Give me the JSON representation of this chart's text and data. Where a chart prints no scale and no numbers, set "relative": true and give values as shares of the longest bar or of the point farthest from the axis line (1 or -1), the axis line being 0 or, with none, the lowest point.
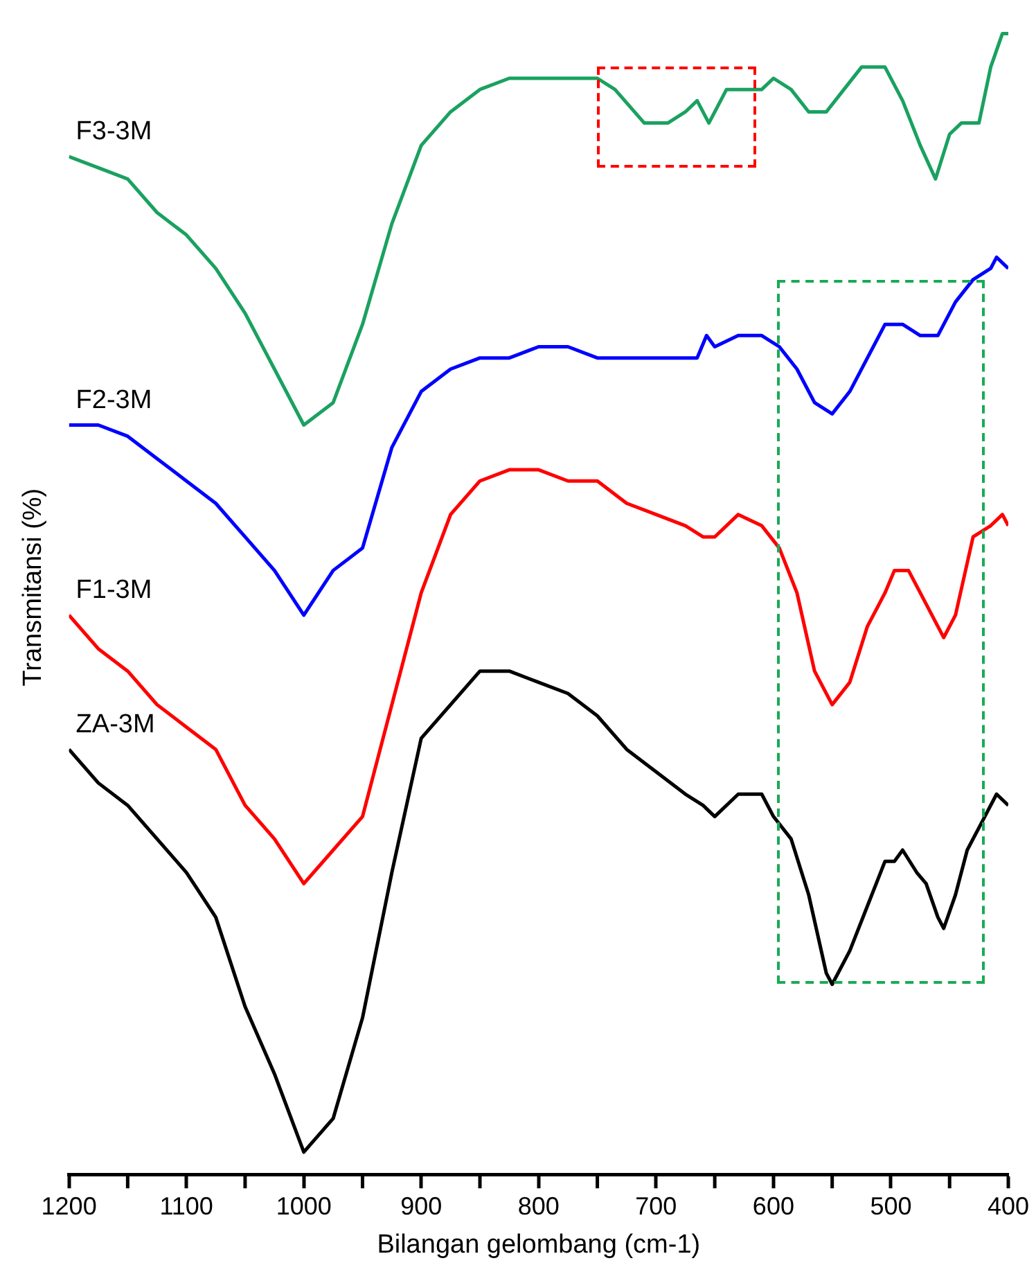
{
  "chart_data": {
    "type": "line",
    "relative": true,
    "xlabel": "Bilangan gelombang (cm-1)",
    "ylabel": "Transmitansi (%)",
    "xlim": [
      1200,
      400
    ],
    "xticks": [
      1200,
      1100,
      1000,
      900,
      800,
      700,
      600,
      500,
      400
    ],
    "grid": false,
    "legend": false,
    "marker": "none",
    "line_style": "solid",
    "series": [
      {
        "name": "F3-3M",
        "color": "#1aa160",
        "x": [
          1200,
          1175,
          1150,
          1125,
          1100,
          1075,
          1050,
          1025,
          1000,
          975,
          950,
          925,
          900,
          875,
          850,
          825,
          800,
          775,
          750,
          735,
          710,
          700,
          690,
          675,
          665,
          655,
          640,
          625,
          610,
          600,
          585,
          570,
          555,
          540,
          525,
          505,
          490,
          475,
          462,
          450,
          440,
          425,
          415,
          405,
          400
        ],
        "values": [
          0.89,
          0.88,
          0.87,
          0.84,
          0.82,
          0.79,
          0.75,
          0.7,
          0.65,
          0.67,
          0.74,
          0.83,
          0.9,
          0.93,
          0.95,
          0.96,
          0.96,
          0.96,
          0.96,
          0.95,
          0.92,
          0.92,
          0.92,
          0.93,
          0.94,
          0.92,
          0.95,
          0.95,
          0.95,
          0.96,
          0.95,
          0.93,
          0.93,
          0.95,
          0.97,
          0.97,
          0.94,
          0.9,
          0.87,
          0.91,
          0.92,
          0.92,
          0.97,
          1.0,
          1.0
        ]
      },
      {
        "name": "F2-3M",
        "color": "#0000ff",
        "x": [
          1200,
          1175,
          1150,
          1125,
          1100,
          1075,
          1050,
          1025,
          1000,
          975,
          950,
          925,
          900,
          875,
          850,
          825,
          800,
          775,
          750,
          725,
          700,
          675,
          665,
          657,
          650,
          630,
          610,
          595,
          580,
          565,
          550,
          535,
          520,
          505,
          490,
          475,
          460,
          445,
          430,
          415,
          410,
          400
        ],
        "values": [
          0.65,
          0.65,
          0.64,
          0.62,
          0.6,
          0.58,
          0.55,
          0.52,
          0.48,
          0.52,
          0.54,
          0.63,
          0.68,
          0.7,
          0.71,
          0.71,
          0.72,
          0.72,
          0.71,
          0.71,
          0.71,
          0.71,
          0.71,
          0.73,
          0.72,
          0.73,
          0.73,
          0.72,
          0.7,
          0.67,
          0.66,
          0.68,
          0.71,
          0.74,
          0.74,
          0.73,
          0.73,
          0.76,
          0.78,
          0.79,
          0.8,
          0.79
        ]
      },
      {
        "name": "F1-3M",
        "color": "#ff0000",
        "x": [
          1200,
          1175,
          1150,
          1125,
          1100,
          1075,
          1050,
          1025,
          1000,
          975,
          950,
          925,
          900,
          875,
          850,
          825,
          800,
          775,
          750,
          725,
          700,
          675,
          660,
          650,
          630,
          610,
          595,
          580,
          565,
          550,
          535,
          520,
          505,
          497,
          485,
          475,
          460,
          455,
          445,
          430,
          415,
          405,
          400
        ],
        "values": [
          0.48,
          0.45,
          0.43,
          0.4,
          0.38,
          0.36,
          0.31,
          0.28,
          0.24,
          0.27,
          0.3,
          0.4,
          0.5,
          0.57,
          0.6,
          0.61,
          0.61,
          0.6,
          0.6,
          0.58,
          0.57,
          0.56,
          0.55,
          0.55,
          0.57,
          0.56,
          0.54,
          0.5,
          0.43,
          0.4,
          0.42,
          0.47,
          0.5,
          0.52,
          0.52,
          0.5,
          0.47,
          0.46,
          0.48,
          0.55,
          0.56,
          0.57,
          0.56
        ]
      },
      {
        "name": "ZA-3M",
        "color": "#000000",
        "x": [
          1200,
          1175,
          1150,
          1125,
          1100,
          1075,
          1050,
          1025,
          1000,
          975,
          950,
          925,
          900,
          875,
          850,
          825,
          800,
          775,
          750,
          725,
          700,
          675,
          660,
          650,
          630,
          610,
          600,
          585,
          570,
          555,
          550,
          535,
          520,
          505,
          497,
          490,
          478,
          470,
          460,
          455,
          445,
          435,
          420,
          410,
          400
        ],
        "values": [
          0.36,
          0.33,
          0.31,
          0.28,
          0.25,
          0.21,
          0.13,
          0.07,
          0,
          0.03,
          0.12,
          0.25,
          0.37,
          0.4,
          0.43,
          0.43,
          0.42,
          0.41,
          0.39,
          0.36,
          0.34,
          0.32,
          0.31,
          0.3,
          0.32,
          0.32,
          0.3,
          0.28,
          0.23,
          0.16,
          0.15,
          0.18,
          0.22,
          0.26,
          0.26,
          0.27,
          0.25,
          0.24,
          0.21,
          0.2,
          0.23,
          0.27,
          0.3,
          0.32,
          0.31
        ]
      }
    ]
  }
}
